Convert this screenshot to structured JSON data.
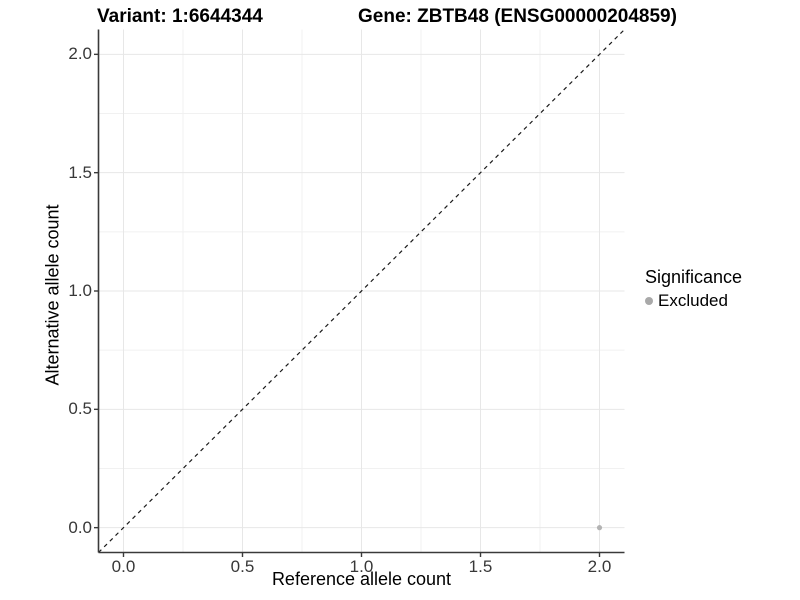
{
  "header": {
    "variant_title": "Variant: 1:6644344",
    "gene_title": "Gene: ZBTB48 (ENSG00000204859)"
  },
  "axes": {
    "x": {
      "label": "Reference allele count",
      "tick_labels": [
        "0.0",
        "0.5",
        "1.0",
        "1.5",
        "2.0"
      ]
    },
    "y": {
      "label": "Alternative allele count",
      "tick_labels": [
        "0.0",
        "0.5",
        "1.0",
        "1.5",
        "2.0"
      ]
    }
  },
  "legend": {
    "title": "Significance",
    "items": [
      {
        "label": "Excluded",
        "color": "#a9a9a9"
      }
    ]
  },
  "colors": {
    "background": "#ffffff",
    "grid_major": "#e7e7e7",
    "grid_minor": "#f1f1f1",
    "axis_line": "#3a3a3a",
    "tick_mark": "#3a3a3a",
    "identity_line": "#1a1a1a",
    "point": "#b3b3b3"
  },
  "chart_data": {
    "type": "scatter",
    "title": "Variant: 1:6644344   Gene: ZBTB48 (ENSG00000204859)",
    "xlabel": "Reference allele count",
    "ylabel": "Alternative allele count",
    "xlim": [
      -0.105,
      2.105
    ],
    "ylim": [
      -0.105,
      2.105
    ],
    "x_breaks": [
      0,
      0.5,
      1,
      1.5,
      2
    ],
    "y_breaks": [
      0,
      0.5,
      1,
      1.5,
      2
    ],
    "x_minor_breaks": [
      0.25,
      0.75,
      1.25,
      1.75
    ],
    "y_minor_breaks": [
      0.25,
      0.75,
      1.25,
      1.75
    ],
    "grid": true,
    "legend_position": "right",
    "identity_line": {
      "slope": 1,
      "intercept": 0,
      "style": "dashed"
    },
    "series": [
      {
        "name": "Excluded",
        "color": "#b3b3b3",
        "points": [
          {
            "x": 2.0,
            "y": 0.0
          }
        ]
      }
    ]
  }
}
